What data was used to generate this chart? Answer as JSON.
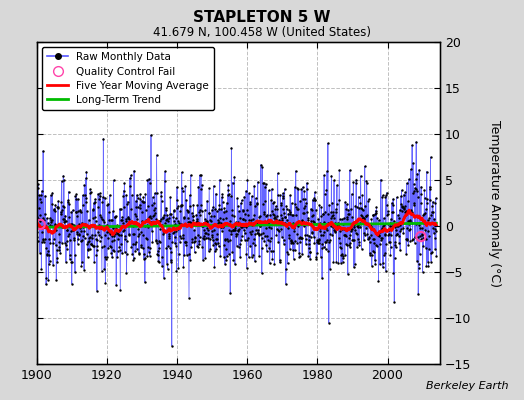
{
  "title": "STAPLETON 5 W",
  "subtitle": "41.679 N, 100.458 W (United States)",
  "ylabel": "Temperature Anomaly (°C)",
  "watermark": "Berkeley Earth",
  "xlim": [
    1900,
    2015
  ],
  "ylim": [
    -15,
    20
  ],
  "yticks": [
    -15,
    -10,
    -5,
    0,
    5,
    10,
    15,
    20
  ],
  "xticks": [
    1900,
    1920,
    1940,
    1960,
    1980,
    2000
  ],
  "bg_color": "#d8d8d8",
  "plot_bg_color": "#ffffff",
  "raw_line_color": "#5555ff",
  "raw_dot_color": "#000000",
  "moving_avg_color": "#ff0000",
  "trend_color": "#00bb00",
  "qc_fail_color": "#ff44aa",
  "seed": 12345,
  "n_years_start": 1900,
  "n_years_end": 2014,
  "n_months": 1368
}
